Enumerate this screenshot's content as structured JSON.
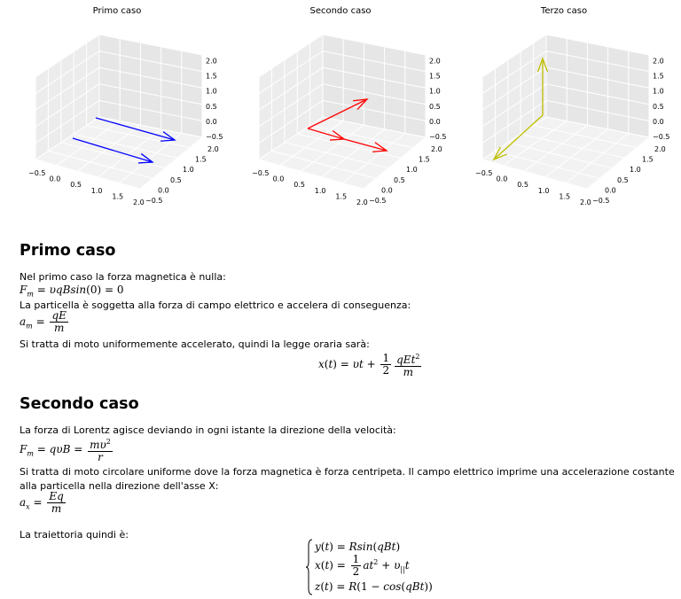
{
  "plots": [
    {
      "title": "Primo caso",
      "color": "#0000ff"
    },
    {
      "title": "Secondo caso",
      "color": "#ff0000"
    },
    {
      "title": "Terzo caso",
      "color": "#bfbf00"
    }
  ],
  "axis_ticks": {
    "x": [
      "−0.5",
      "0.0",
      "0.5",
      "1.0",
      "1.5",
      "2.0"
    ],
    "y": [
      "−0.5",
      "0.0",
      "0.5",
      "1.0",
      "1.5",
      "2.0"
    ],
    "z": [
      "−0.5",
      "0.0",
      "0.5",
      "1.0",
      "1.5",
      "2.0"
    ]
  },
  "section1": {
    "heading": "Primo caso",
    "p1": "Nel primo caso la forza magnetica è nulla:",
    "p2": "La particella è soggetta alla forza di campo elettrico e accelera di conseguenza:",
    "p3": "Si tratta di moto uniformemente accelerato, quindi la legge oraria sarà:"
  },
  "section2": {
    "heading": "Secondo caso",
    "p1": "La forza di Lorentz agisce deviando in ogni istante la direzione della velocità:",
    "p2": "Si tratta di moto circolare uniforme dove la forza magnetica è forza centripeta. Il campo elettrico imprime una accelerazione costante alla particella nella direzione dell'asse X:",
    "p3": "La traiettoria quindi è:"
  }
}
